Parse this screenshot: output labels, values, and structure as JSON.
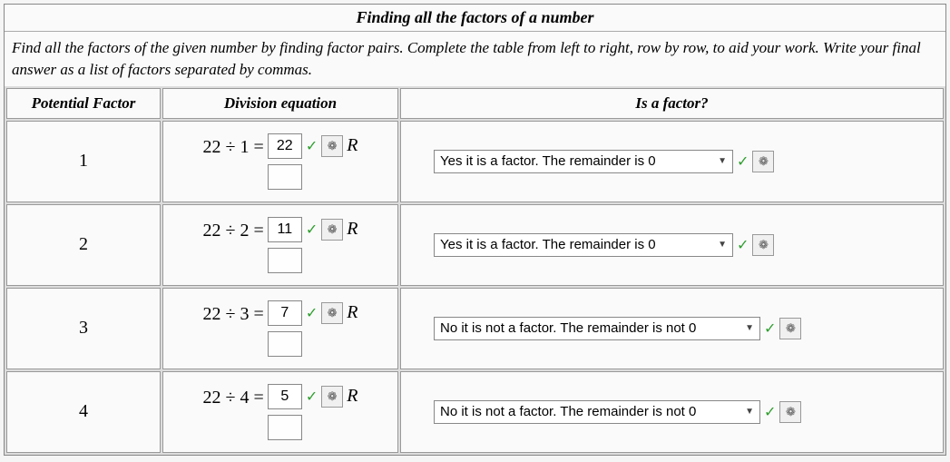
{
  "title": "Finding all the factors of a number",
  "instructions": "Find all the factors of the given number by finding factor pairs. Complete the table from left to right, row by row, to aid your work. Write your final answer as a list of factors separated by commas.",
  "headers": {
    "pf": "Potential Factor",
    "de": "Division equation",
    "isf": "Is a factor?"
  },
  "number": 22,
  "select_options": [
    "Yes it is a factor. The remainder is 0",
    "No it is not a factor. The remainder is not 0"
  ],
  "r_label": "R",
  "wand_glyph": "❁",
  "check_glyph": "✓",
  "caret_glyph": "▼",
  "rows": [
    {
      "pf": "1",
      "lhs": "22 ÷ 1 =",
      "quotient": "22",
      "remainder": "",
      "select_value": "Yes it is a factor. The remainder is 0",
      "select_min_width": 330
    },
    {
      "pf": "2",
      "lhs": "22 ÷ 2 =",
      "quotient": "11",
      "remainder": "",
      "select_value": "Yes it is a factor. The remainder is 0",
      "select_min_width": 330
    },
    {
      "pf": "3",
      "lhs": "22 ÷ 3 =",
      "quotient": "7",
      "remainder": "",
      "select_value": "No it is not a factor. The remainder is not 0",
      "select_min_width": 360
    },
    {
      "pf": "4",
      "lhs": "22 ÷ 4 =",
      "quotient": "5",
      "remainder": "",
      "select_value": "No it is not a factor. The remainder is not 0",
      "select_min_width": 360
    }
  ],
  "colors": {
    "border": "#888888",
    "bg": "#fafafa",
    "check": "#2e9e2e"
  }
}
